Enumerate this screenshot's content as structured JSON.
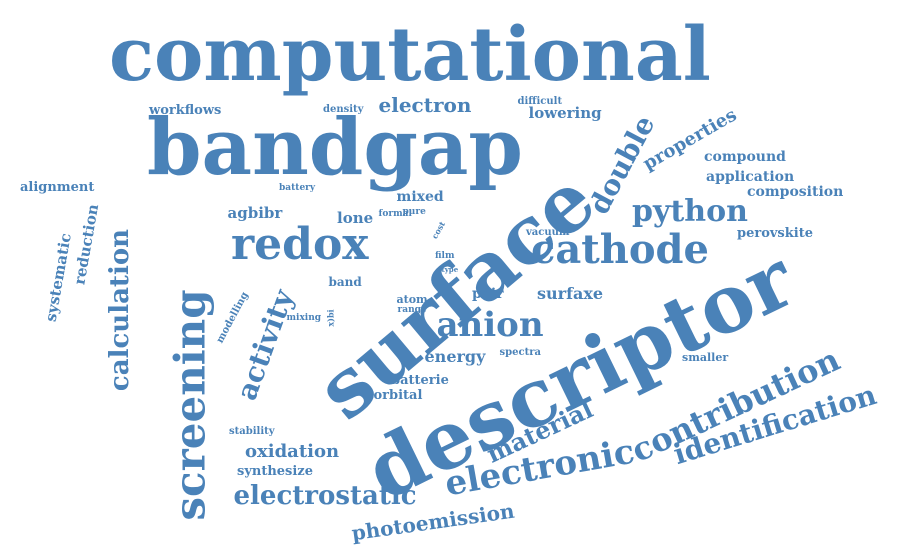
{
  "colors": {
    "word": "#4a82b8",
    "background": "#ffffff"
  },
  "words": [
    {
      "text": "computational"
    },
    {
      "text": "bandgap"
    },
    {
      "text": "surface"
    },
    {
      "text": "descriptor"
    },
    {
      "text": "screening"
    },
    {
      "text": "redox"
    },
    {
      "text": "cathode"
    },
    {
      "text": "anion"
    },
    {
      "text": "double"
    },
    {
      "text": "python"
    },
    {
      "text": "electronic"
    },
    {
      "text": "contribution"
    },
    {
      "text": "identification"
    },
    {
      "text": "material"
    },
    {
      "text": "electrostatic"
    },
    {
      "text": "calculation"
    },
    {
      "text": "activity"
    },
    {
      "text": "electron"
    },
    {
      "text": "properties"
    },
    {
      "text": "photoemission"
    },
    {
      "text": "oxidation"
    },
    {
      "text": "energy"
    },
    {
      "text": "surfaxe"
    },
    {
      "text": "systematic"
    },
    {
      "text": "reduction"
    },
    {
      "text": "compound"
    },
    {
      "text": "application"
    },
    {
      "text": "composition"
    },
    {
      "text": "perovskite"
    },
    {
      "text": "lowering"
    },
    {
      "text": "workflows"
    },
    {
      "text": "alignment"
    },
    {
      "text": "agbibr"
    },
    {
      "text": "lone"
    },
    {
      "text": "pair"
    },
    {
      "text": "band"
    },
    {
      "text": "batterie"
    },
    {
      "text": "orbital"
    },
    {
      "text": "synthesize"
    },
    {
      "text": "mixed"
    },
    {
      "text": "modelling"
    },
    {
      "text": "stability"
    },
    {
      "text": "smaller"
    },
    {
      "text": "spectra"
    },
    {
      "text": "vacuum"
    },
    {
      "text": "difficult"
    },
    {
      "text": "density"
    },
    {
      "text": "battery"
    },
    {
      "text": "formal"
    },
    {
      "text": "pure"
    },
    {
      "text": "cost"
    },
    {
      "text": "film"
    },
    {
      "text": "type"
    },
    {
      "text": "atom"
    },
    {
      "text": "range"
    },
    {
      "text": "mixing"
    },
    {
      "text": "x)bi"
    }
  ]
}
